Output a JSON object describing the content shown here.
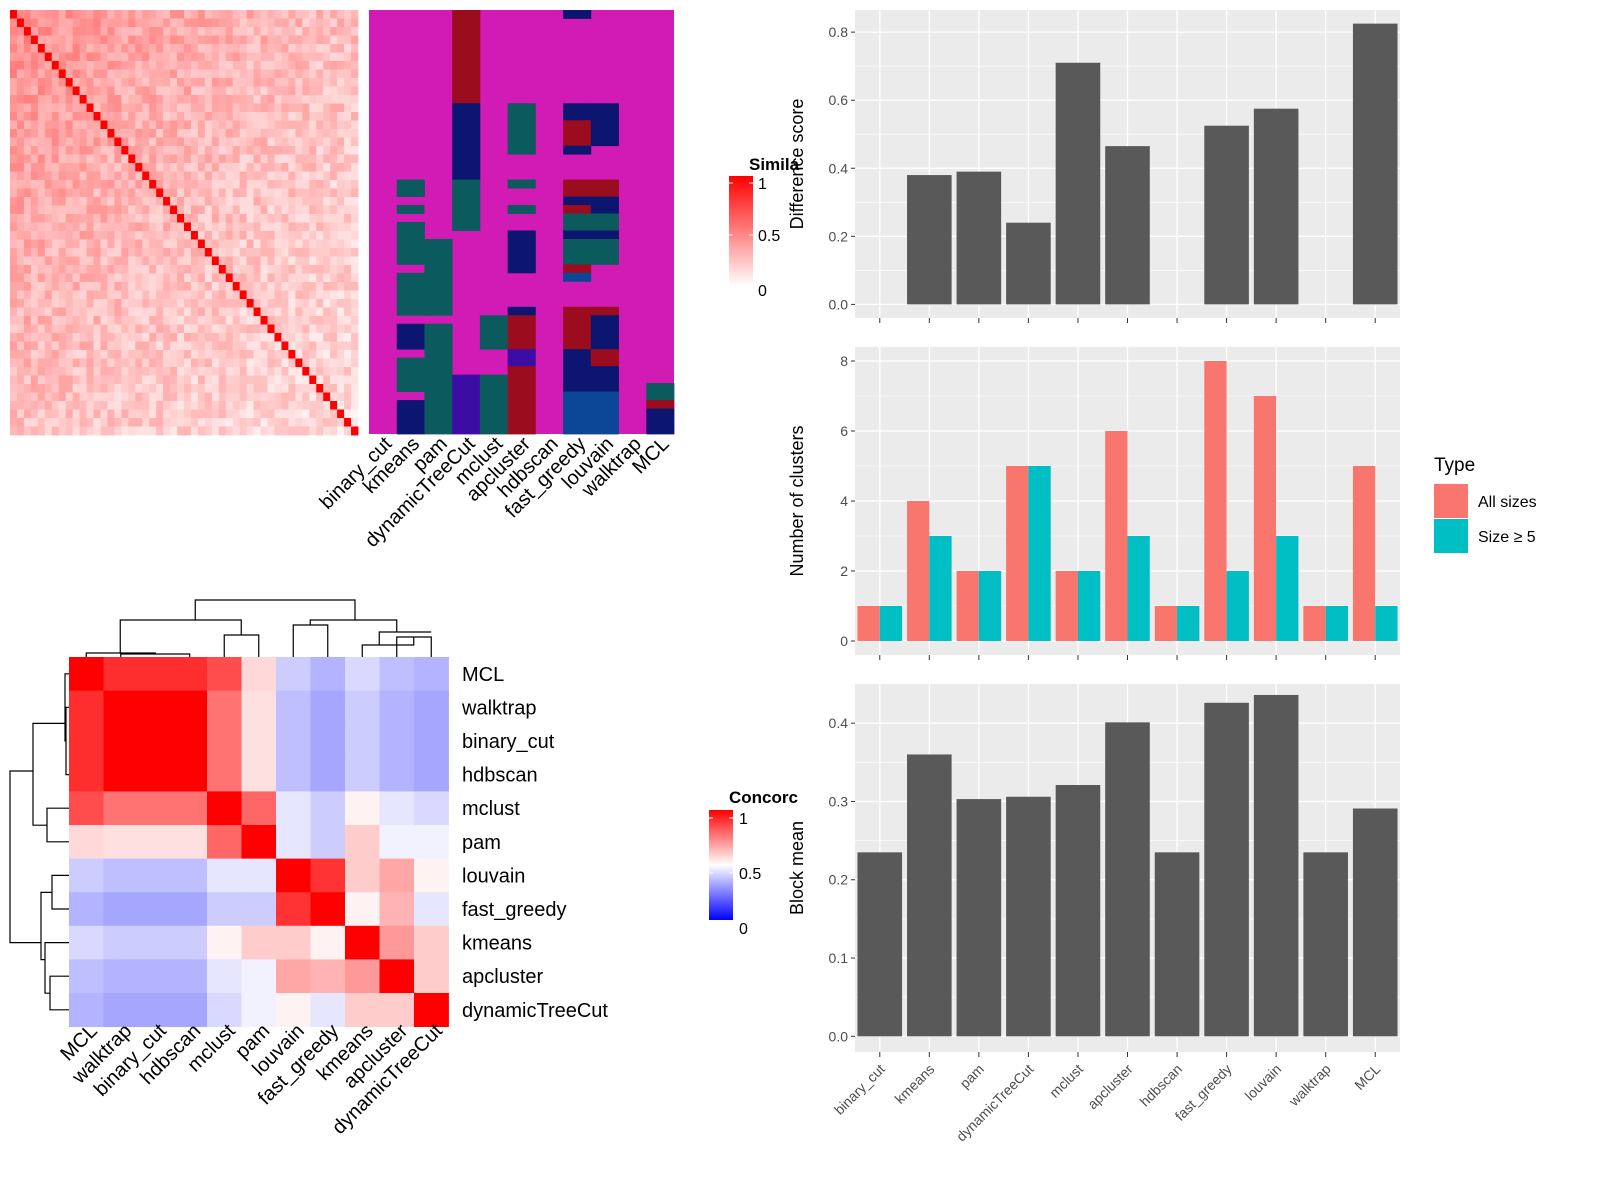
{
  "colors": {
    "grey_bar": "#595959",
    "panel_bg": "#ebebeb",
    "all_sizes": "#F8766D",
    "size5": "#00BFC4",
    "cluster_colors": [
      "#d21ab4",
      "#0b5a5e",
      "#9b0c1f",
      "#0c1670",
      "#3c0da5",
      "#0c4797"
    ],
    "sim_scale": [
      "#ffffff",
      "#ff0000"
    ],
    "conc_scale": [
      "#0000ff",
      "#ffffff",
      "#ff0000"
    ]
  },
  "heatmap_similarity": {
    "legend_title": "Simila",
    "legend_ticks": [
      "1",
      "0.5",
      "0"
    ],
    "methods": [
      "binary_cut",
      "kmeans",
      "pam",
      "dynamicTreeCut",
      "mclust",
      "apcluster",
      "hdbscan",
      "fast_greedy",
      "louvain",
      "walktrap",
      "MCL"
    ]
  },
  "heatmap_concordance": {
    "legend_title": "Concorc",
    "legend_ticks": [
      "1",
      "0.5",
      "0"
    ],
    "order": [
      "MCL",
      "walktrap",
      "binary_cut",
      "hdbscan",
      "mclust",
      "pam",
      "louvain",
      "fast_greedy",
      "kmeans",
      "apcluster",
      "dynamicTreeCut"
    ]
  },
  "chart_data": [
    {
      "type": "bar",
      "categories": [
        "binary_cut",
        "kmeans",
        "pam",
        "dynamicTreeCut",
        "mclust",
        "apcluster",
        "hdbscan",
        "fast_greedy",
        "louvain",
        "walktrap",
        "MCL"
      ],
      "values": [
        0,
        0.38,
        0.39,
        0.24,
        0.71,
        0.465,
        0,
        0.525,
        0.575,
        0,
        0.825
      ],
      "ylabel": "Difference score",
      "ylim": [
        -0.04,
        0.865
      ],
      "yticks": [
        "0.0",
        "0.2",
        "0.4",
        "0.6",
        "0.8"
      ]
    },
    {
      "type": "bar",
      "categories": [
        "binary_cut",
        "kmeans",
        "pam",
        "dynamicTreeCut",
        "mclust",
        "apcluster",
        "hdbscan",
        "fast_greedy",
        "louvain",
        "walktrap",
        "MCL"
      ],
      "series": [
        {
          "name": "All sizes",
          "values": [
            1,
            4,
            2,
            5,
            2,
            6,
            1,
            8,
            7,
            1,
            5
          ]
        },
        {
          "name": "Size ≥ 5",
          "values": [
            1,
            3,
            2,
            5,
            2,
            3,
            1,
            2,
            3,
            1,
            1
          ]
        }
      ],
      "ylabel": "Number of clusters",
      "ylim": [
        -0.4,
        8.4
      ],
      "yticks": [
        "0",
        "2",
        "4",
        "6",
        "8"
      ],
      "legend_title": "Type",
      "legend_placement": "right"
    },
    {
      "type": "bar",
      "categories": [
        "binary_cut",
        "kmeans",
        "pam",
        "dynamicTreeCut",
        "mclust",
        "apcluster",
        "hdbscan",
        "fast_greedy",
        "louvain",
        "walktrap",
        "MCL"
      ],
      "values": [
        0.235,
        0.36,
        0.303,
        0.306,
        0.321,
        0.401,
        0.235,
        0.426,
        0.436,
        0.235,
        0.291
      ],
      "ylabel": "Block mean",
      "ylim": [
        -0.02,
        0.45
      ],
      "yticks": [
        "0.0",
        "0.1",
        "0.2",
        "0.3",
        "0.4"
      ]
    }
  ]
}
